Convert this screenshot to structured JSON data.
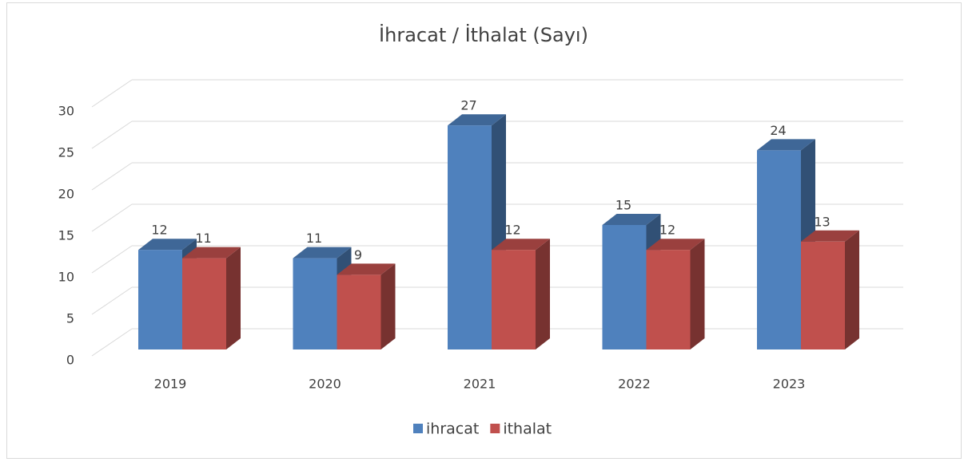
{
  "chart_data": {
    "type": "bar3d",
    "title": "İhracat / İthalat (Sayı)",
    "categories": [
      "2019",
      "2020",
      "2021",
      "2022",
      "2023"
    ],
    "series": [
      {
        "name": "ihracat",
        "color": "#4f81bd",
        "values": [
          12,
          11,
          27,
          15,
          24
        ]
      },
      {
        "name": "ithalat",
        "color": "#c0504d",
        "values": [
          11,
          9,
          12,
          12,
          13
        ]
      }
    ],
    "ylim": [
      0,
      30
    ],
    "yticks": [
      0,
      5,
      10,
      15,
      20,
      25,
      30
    ],
    "grid": true,
    "legend": "bottom"
  }
}
